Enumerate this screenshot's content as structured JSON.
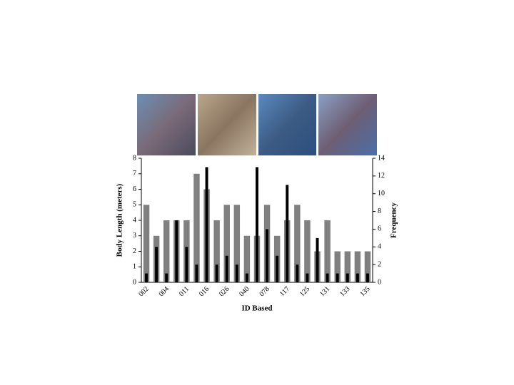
{
  "chart_data": {
    "type": "bar",
    "categories": [
      "002",
      null,
      "004",
      null,
      "011",
      null,
      "016",
      null,
      "026",
      null,
      "040",
      null,
      "078",
      null,
      "117",
      null,
      "125",
      null,
      "131",
      null,
      "133",
      null,
      "135"
    ],
    "series": [
      {
        "name": "Body Length",
        "color": "#808080",
        "values": [
          5,
          3,
          4,
          4,
          4,
          7,
          6,
          4,
          5,
          5,
          3,
          3,
          5,
          3,
          4,
          5,
          4,
          2,
          4,
          2,
          2,
          2,
          2
        ]
      },
      {
        "name": "Frequency",
        "color": "#000000",
        "axis": "y2",
        "values": [
          1,
          4,
          1,
          7,
          4,
          2,
          13,
          2,
          3,
          2,
          1,
          13,
          6,
          3,
          11,
          2,
          1,
          5,
          1,
          1,
          1,
          1,
          1
        ]
      }
    ],
    "ylim": [
      0,
      8
    ],
    "yticks": [
      0,
      1,
      2,
      3,
      4,
      5,
      6,
      7,
      8
    ],
    "y2lim": [
      0,
      14
    ],
    "y2ticks": [
      0,
      2,
      4,
      6,
      8,
      10,
      12,
      14
    ],
    "y_label": "Body Length (meters)",
    "y2_label": "Frequency",
    "x_label": "ID Based"
  }
}
